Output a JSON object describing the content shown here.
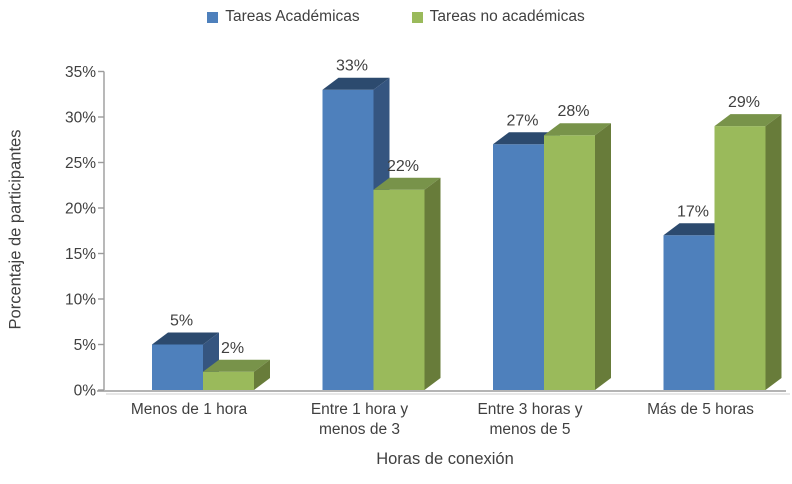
{
  "chart_data": {
    "type": "bar",
    "style": "3d-clustered-column",
    "title": "",
    "xlabel": "Horas de conexión",
    "ylabel": "Porcentaje de participantes",
    "categories": [
      "Menos de 1 hora",
      "Entre 1 hora y\nmenos de 3",
      "Entre 3 horas y\nmenos de 5",
      "Más de 5 horas"
    ],
    "series": [
      {
        "name": "Tareas Académicas",
        "values": [
          5,
          33,
          27,
          17
        ],
        "labels": [
          "5%",
          "33%",
          "27%",
          "17%"
        ],
        "color": "#4e80bc",
        "top_color": "#2c4a6e",
        "side_color": "#355580"
      },
      {
        "name": "Tareas no académicas",
        "values": [
          2,
          22,
          28,
          29
        ],
        "labels": [
          "2%",
          "22%",
          "28%",
          "29%"
        ],
        "color": "#9aba5b",
        "top_color": "#78934a",
        "side_color": "#687c3a"
      }
    ],
    "y_ticks": [
      "0%",
      "5%",
      "10%",
      "15%",
      "20%",
      "25%",
      "30%",
      "35%"
    ],
    "ylim": [
      0,
      35
    ],
    "y_tick_step": 5,
    "grid": false,
    "legend_position": "top",
    "axis_color": "#9b9b9b",
    "axis_shadow_color": "#cfcfcf",
    "text_color": "#404040"
  }
}
